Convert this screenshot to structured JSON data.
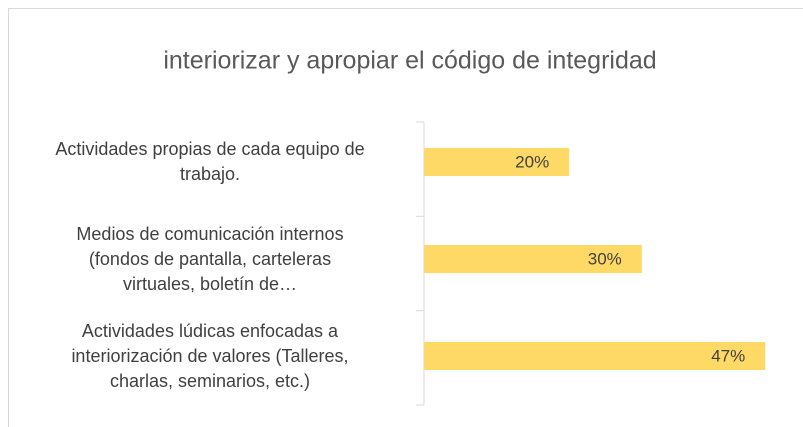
{
  "chart_data": {
    "type": "bar",
    "orientation": "horizontal",
    "title": "interiorizar y apropiar el código de integridad",
    "categories": [
      "Actividades propias de cada equipo de\ntrabajo.",
      "Medios de comunicación internos\n(fondos de pantalla, carteleras\nvirtuales, boletín de…",
      "Actividades lúdicas enfocadas a\ninteriorización de valores (Talleres,\ncharlas, seminarios, etc.)"
    ],
    "values": [
      20,
      30,
      47
    ],
    "value_labels": [
      "20%",
      "30%",
      "47%"
    ],
    "color": "#ffd966"
  }
}
